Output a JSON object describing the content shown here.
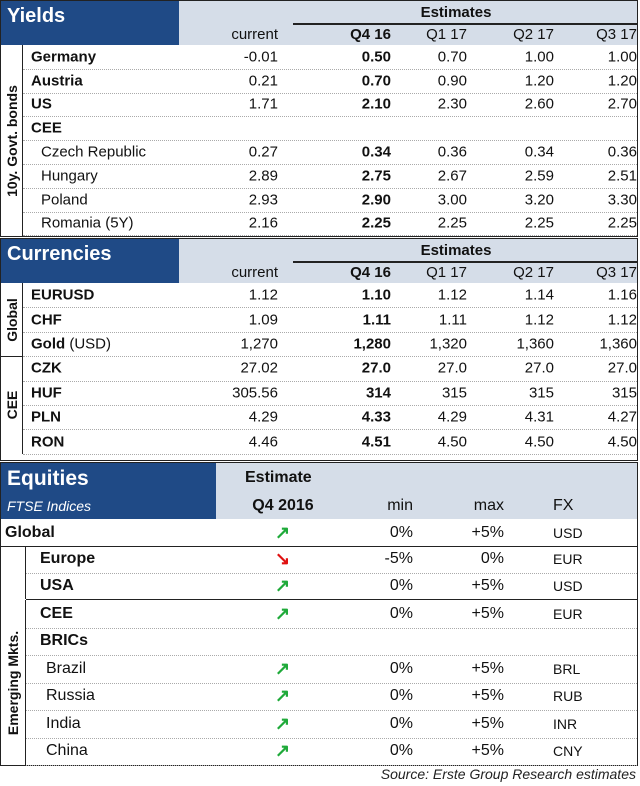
{
  "yields": {
    "title": "Yields",
    "estimates_label": "Estimates",
    "columns": [
      "current",
      "Q4 16",
      "Q1 17",
      "Q2 17",
      "Q3 17"
    ],
    "side_label": "10y. Govt. bonds",
    "rows": [
      {
        "name": "Germany",
        "bold": true,
        "values": [
          "-0.01",
          "0.50",
          "0.70",
          "1.00",
          "1.00"
        ]
      },
      {
        "name": "Austria",
        "bold": true,
        "values": [
          "0.21",
          "0.70",
          "0.90",
          "1.20",
          "1.20"
        ]
      },
      {
        "name": "US",
        "bold": true,
        "values": [
          "1.71",
          "2.10",
          "2.30",
          "2.60",
          "2.70"
        ]
      },
      {
        "name": "CEE",
        "bold": true,
        "values": []
      },
      {
        "name": "Czech Republic",
        "sub": true,
        "values": [
          "0.27",
          "0.34",
          "0.36",
          "0.34",
          "0.36"
        ]
      },
      {
        "name": "Hungary",
        "sub": true,
        "values": [
          "2.89",
          "2.75",
          "2.67",
          "2.59",
          "2.51"
        ]
      },
      {
        "name": "Poland",
        "sub": true,
        "values": [
          "2.93",
          "2.90",
          "3.00",
          "3.20",
          "3.30"
        ]
      },
      {
        "name": "Romania (5Y)",
        "sub": true,
        "values": [
          "2.16",
          "2.25",
          "2.25",
          "2.25",
          "2.25"
        ]
      }
    ]
  },
  "currencies": {
    "title": "Currencies",
    "estimates_label": "Estimates",
    "columns": [
      "current",
      "Q4 16",
      "Q1 17",
      "Q2 17",
      "Q3 17"
    ],
    "groups": [
      {
        "label": "Global",
        "rows": [
          {
            "name": "EURUSD",
            "bold": true,
            "values": [
              "1.12",
              "1.10",
              "1.12",
              "1.14",
              "1.16"
            ]
          },
          {
            "name": "CHF",
            "bold": true,
            "values": [
              "1.09",
              "1.11",
              "1.11",
              "1.12",
              "1.12"
            ]
          },
          {
            "name": "Gold",
            "suffix": " (USD)",
            "bold": true,
            "values": [
              "1,270",
              "1,280",
              "1,320",
              "1,360",
              "1,360"
            ]
          }
        ]
      },
      {
        "label": "CEE",
        "rows": [
          {
            "name": "CZK",
            "bold": true,
            "values": [
              "27.02",
              "27.0",
              "27.0",
              "27.0",
              "27.0"
            ]
          },
          {
            "name": "HUF",
            "bold": true,
            "values": [
              "305.56",
              "314",
              "315",
              "315",
              "315"
            ]
          },
          {
            "name": "PLN",
            "bold": true,
            "values": [
              "4.29",
              "4.33",
              "4.29",
              "4.31",
              "4.27"
            ]
          },
          {
            "name": "RON",
            "bold": true,
            "values": [
              "4.46",
              "4.51",
              "4.50",
              "4.50",
              "4.50"
            ]
          }
        ]
      }
    ]
  },
  "equities": {
    "title": "Equities",
    "subtitle": "FTSE Indices",
    "estimate_label": "Estimate",
    "columns": [
      "Q4 2016",
      "min",
      "max",
      "FX"
    ],
    "colors": {
      "up": "#1faa3a",
      "down": "#e01010",
      "header_dark": "#1f4a86",
      "header_light": "#d5dde8"
    },
    "global": {
      "name": "Global",
      "trend": "up",
      "min": "0%",
      "max": "+5%",
      "fx": "USD"
    },
    "developed": [
      {
        "name": "Europe",
        "trend": "down",
        "min": "-5%",
        "max": "0%",
        "fx": "EUR"
      },
      {
        "name": "USA",
        "trend": "up",
        "min": "0%",
        "max": "+5%",
        "fx": "USD"
      }
    ],
    "emerging_label": "Emerging Mkts.",
    "emerging": [
      {
        "name": "CEE",
        "bold": true,
        "trend": "up",
        "min": "0%",
        "max": "+5%",
        "fx": "EUR"
      },
      {
        "name": "BRICs",
        "bold": true
      },
      {
        "name": "Brazil",
        "sub": true,
        "trend": "up",
        "min": "0%",
        "max": "+5%",
        "fx": "BRL"
      },
      {
        "name": "Russia",
        "sub": true,
        "trend": "up",
        "min": "0%",
        "max": "+5%",
        "fx": "RUB"
      },
      {
        "name": "India",
        "sub": true,
        "trend": "up",
        "min": "0%",
        "max": "+5%",
        "fx": "INR"
      },
      {
        "name": "China",
        "sub": true,
        "trend": "up",
        "min": "0%",
        "max": "+5%",
        "fx": "CNY"
      }
    ]
  },
  "source": "Source: Erste Group Research estimates"
}
